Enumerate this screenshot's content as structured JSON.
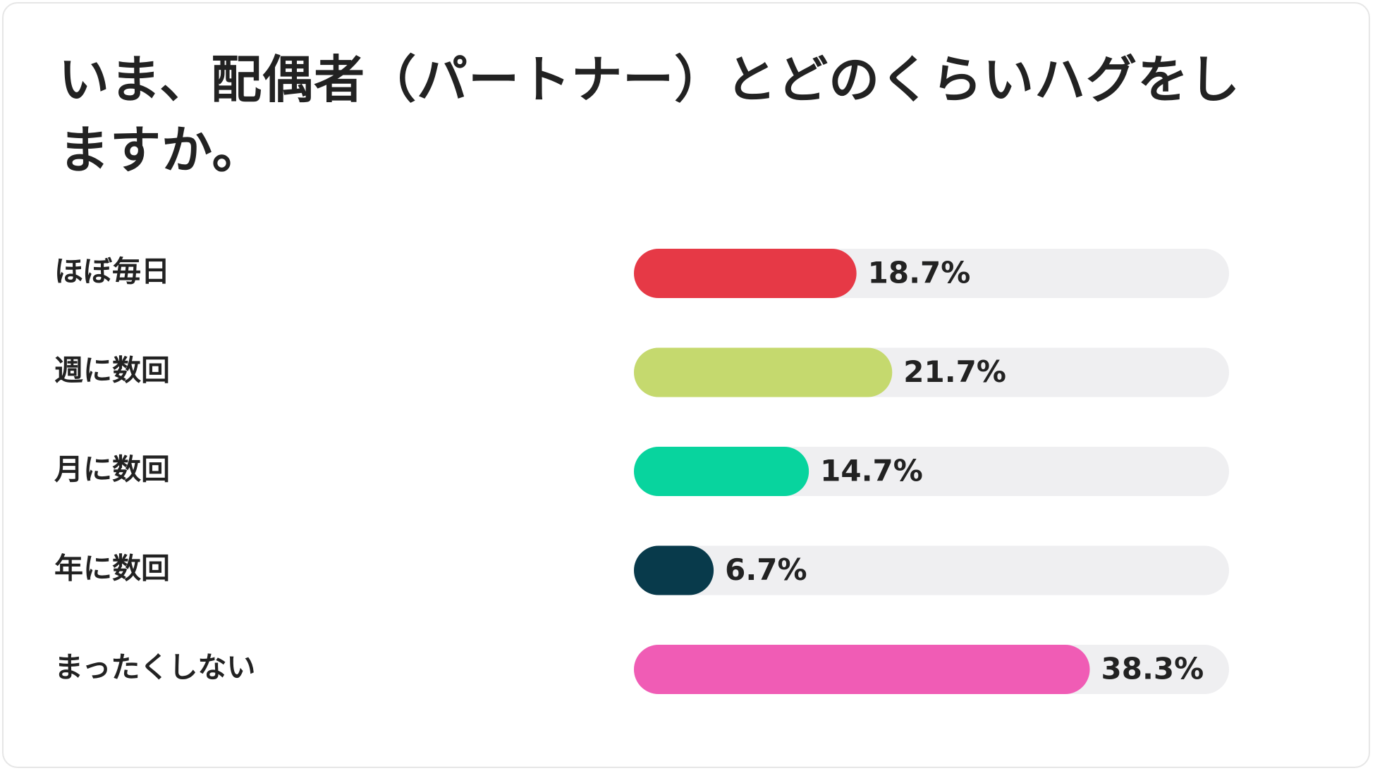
{
  "chart_data": {
    "type": "bar",
    "orientation": "horizontal",
    "title": "いま、配偶者（パートナー）とどのくらいハグをしますか。",
    "categories": [
      "ほぼ毎日",
      "週に数回",
      "月に数回",
      "年に数回",
      "まったくしない"
    ],
    "values": [
      18.7,
      21.7,
      14.7,
      6.7,
      38.3
    ],
    "value_labels": [
      "18.7%",
      "21.7%",
      "14.7%",
      "6.7%",
      "38.3%"
    ],
    "colors": [
      "#e63946",
      "#c5d96e",
      "#08d49e",
      "#083a4b",
      "#f05cb5"
    ],
    "track_color": "#efeff1",
    "xlim": [
      0,
      50
    ]
  }
}
